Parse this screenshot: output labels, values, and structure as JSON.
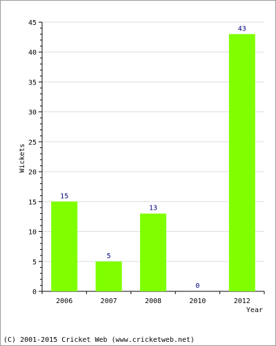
{
  "chart_data": {
    "type": "bar",
    "categories": [
      "2006",
      "2007",
      "2008",
      "2010",
      "2012"
    ],
    "values": [
      15,
      5,
      13,
      0,
      43
    ],
    "title": "",
    "xlabel": "Year",
    "ylabel": "Wickets",
    "ylim": [
      0,
      45
    ],
    "yticks": [
      0,
      5,
      10,
      15,
      20,
      25,
      30,
      35,
      40,
      45
    ],
    "grid": true,
    "legend": "none",
    "colors": {
      "bar": "#80ff00",
      "value_label": "#000080",
      "grid": "#dddddd",
      "axis": "#000000"
    }
  },
  "footer": {
    "copyright": "(C) 2001-2015 Cricket Web (www.cricketweb.net)"
  }
}
